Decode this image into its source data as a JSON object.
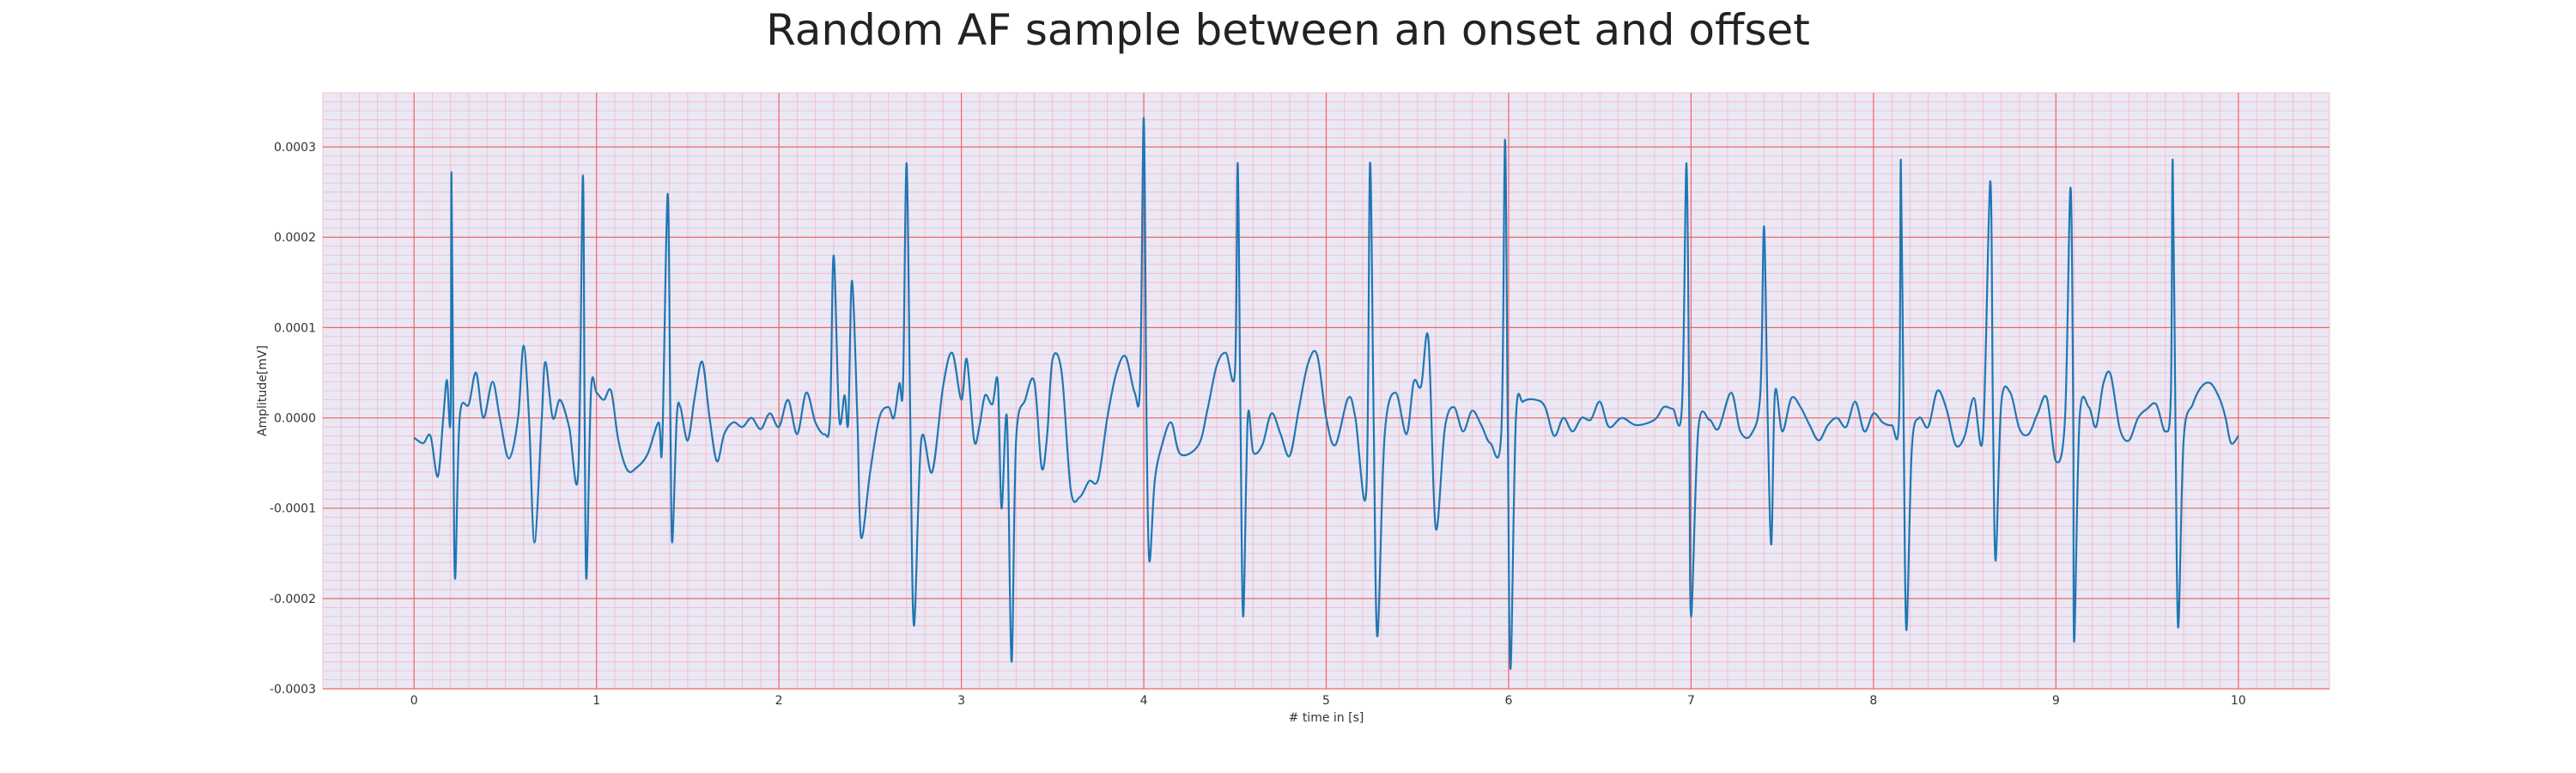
{
  "chart_data": {
    "type": "line",
    "title": "Random AF sample between an onset and offset",
    "xlabel": "# time in [s]",
    "ylabel": "Amplitude[mV]",
    "xlim": [
      -0.5,
      10.5
    ],
    "ylim": [
      -0.0003,
      0.00036
    ],
    "xticks": [
      0,
      1,
      2,
      3,
      4,
      5,
      6,
      7,
      8,
      9,
      10
    ],
    "xtick_labels": [
      "0",
      "1",
      "2",
      "3",
      "4",
      "5",
      "6",
      "7",
      "8",
      "9",
      "10"
    ],
    "yticks": [
      -0.0003,
      -0.0002,
      -0.0001,
      0.0,
      0.0001,
      0.0002,
      0.0003
    ],
    "ytick_labels": [
      "-0.0003",
      "-0.0002",
      "-0.0001",
      "0.0000",
      "0.0001",
      "0.0002",
      "0.0003"
    ],
    "grid": true,
    "minor_grid": true,
    "colors": {
      "background": "#eae8f4",
      "major_grid": "#f06464",
      "minor_grid": "#f4b6c8",
      "line": "#1f77b4"
    },
    "series": [
      {
        "points": [
          [
            0.0,
            -2.2e-05
          ],
          [
            0.05,
            -2.8e-05
          ],
          [
            0.09,
            -2e-05
          ],
          [
            0.13,
            -6.5e-05
          ],
          [
            0.16,
            0.0
          ],
          [
            0.18,
            4.2e-05
          ],
          [
            0.2,
            0.0
          ],
          [
            0.205,
            0.000272
          ],
          [
            0.215,
            0.0
          ],
          [
            0.225,
            -0.000178
          ],
          [
            0.25,
            0.0
          ],
          [
            0.3,
            1.5e-05
          ],
          [
            0.34,
            5e-05
          ],
          [
            0.38,
            0.0
          ],
          [
            0.43,
            4e-05
          ],
          [
            0.47,
            0.0
          ],
          [
            0.52,
            -4.5e-05
          ],
          [
            0.57,
            0.0
          ],
          [
            0.6,
            8e-05
          ],
          [
            0.63,
            0.0
          ],
          [
            0.66,
            -0.000138
          ],
          [
            0.7,
            0.0
          ],
          [
            0.72,
            6.2e-05
          ],
          [
            0.76,
            0.0
          ],
          [
            0.8,
            2e-05
          ],
          [
            0.85,
            -1e-05
          ],
          [
            0.9,
            -6e-05
          ],
          [
            0.925,
            0.000268
          ],
          [
            0.935,
            0.0
          ],
          [
            0.945,
            -0.000178
          ],
          [
            0.97,
            3e-05
          ],
          [
            1.0,
            2.8e-05
          ],
          [
            1.04,
            2e-05
          ],
          [
            1.08,
            3e-05
          ],
          [
            1.12,
            -2.5e-05
          ],
          [
            1.17,
            -5.8e-05
          ],
          [
            1.22,
            -5.5e-05
          ],
          [
            1.28,
            -4e-05
          ],
          [
            1.34,
            -5e-06
          ],
          [
            1.36,
            -3e-05
          ],
          [
            1.39,
            0.000248
          ],
          [
            1.405,
            0.0
          ],
          [
            1.415,
            -0.000138
          ],
          [
            1.44,
            0.0
          ],
          [
            1.46,
            1.2e-05
          ],
          [
            1.5,
            -2.5e-05
          ],
          [
            1.54,
            2.5e-05
          ],
          [
            1.58,
            6.2e-05
          ],
          [
            1.62,
            0.0
          ],
          [
            1.66,
            -4.8e-05
          ],
          [
            1.7,
            -1.8e-05
          ],
          [
            1.75,
            -5e-06
          ],
          [
            1.8,
            -1e-05
          ],
          [
            1.85,
            0.0
          ],
          [
            1.9,
            -1.25e-05
          ],
          [
            1.95,
            5e-06
          ],
          [
            2.0,
            -1e-05
          ],
          [
            2.05,
            2e-05
          ],
          [
            2.1,
            -1.8e-05
          ],
          [
            2.15,
            2.8e-05
          ],
          [
            2.2,
            -5e-06
          ],
          [
            2.25,
            -1.8e-05
          ],
          [
            2.28,
            0.0
          ],
          [
            2.3,
            0.00018
          ],
          [
            2.33,
            0.0
          ],
          [
            2.36,
            2.5e-05
          ],
          [
            2.38,
            -5e-06
          ],
          [
            2.4,
            0.000152
          ],
          [
            2.43,
            0.0
          ],
          [
            2.45,
            -0.000132
          ],
          [
            2.5,
            -6e-05
          ],
          [
            2.55,
            0.0
          ],
          [
            2.6,
            1.2e-05
          ],
          [
            2.63,
            0.0
          ],
          [
            2.66,
            3.8e-05
          ],
          [
            2.68,
            3.5e-05
          ],
          [
            2.7,
            0.000282
          ],
          [
            2.72,
            0.0
          ],
          [
            2.74,
            -0.00023
          ],
          [
            2.78,
            -2.5e-05
          ],
          [
            2.84,
            -6e-05
          ],
          [
            2.9,
            3.5e-05
          ],
          [
            2.95,
            7.2e-05
          ],
          [
            3.0,
            2e-05
          ],
          [
            3.03,
            6.5e-05
          ],
          [
            3.07,
            -2.5e-05
          ],
          [
            3.1,
            -8e-06
          ],
          [
            3.13,
            2.5e-05
          ],
          [
            3.17,
            1.5e-05
          ],
          [
            3.2,
            4e-05
          ],
          [
            3.22,
            -0.0001
          ],
          [
            3.25,
            0.0
          ],
          [
            3.275,
            -0.00027
          ],
          [
            3.3,
            -2.5e-05
          ],
          [
            3.35,
            2e-05
          ],
          [
            3.4,
            4e-05
          ],
          [
            3.44,
            -5.5e-05
          ],
          [
            3.47,
            -2e-05
          ],
          [
            3.5,
            6.5e-05
          ],
          [
            3.55,
            5e-05
          ],
          [
            3.6,
            -8e-05
          ],
          [
            3.65,
            -8.75e-05
          ],
          [
            3.7,
            -7e-05
          ],
          [
            3.75,
            -6.8e-05
          ],
          [
            3.8,
            0.0
          ],
          [
            3.85,
            5e-05
          ],
          [
            3.9,
            6.8e-05
          ],
          [
            3.95,
            2.8e-05
          ],
          [
            3.98,
            4e-05
          ],
          [
            4.0,
            0.000332
          ],
          [
            4.015,
            0.0
          ],
          [
            4.03,
            -0.000158
          ],
          [
            4.06,
            -7e-05
          ],
          [
            4.1,
            -3e-05
          ],
          [
            4.15,
            -5e-06
          ],
          [
            4.2,
            -4e-05
          ],
          [
            4.3,
            -3e-05
          ],
          [
            4.35,
            1e-05
          ],
          [
            4.4,
            5.8e-05
          ],
          [
            4.45,
            7.2e-05
          ],
          [
            4.5,
            5.2e-05
          ],
          [
            4.515,
            0.000282
          ],
          [
            4.53,
            0.0
          ],
          [
            4.545,
            -0.00022
          ],
          [
            4.57,
            0.0
          ],
          [
            4.6,
            -3.8e-05
          ],
          [
            4.65,
            -3e-05
          ],
          [
            4.7,
            5e-06
          ],
          [
            4.75,
            -1.8e-05
          ],
          [
            4.8,
            -4.2e-05
          ],
          [
            4.85,
            1e-05
          ],
          [
            4.9,
            6e-05
          ],
          [
            4.95,
            7e-05
          ],
          [
            5.0,
            0.0
          ],
          [
            5.05,
            -3e-05
          ],
          [
            5.12,
            2.2e-05
          ],
          [
            5.16,
            0.0
          ],
          [
            5.22,
            -8e-05
          ],
          [
            5.24,
            0.000282
          ],
          [
            5.26,
            0.0
          ],
          [
            5.28,
            -0.000242
          ],
          [
            5.32,
            -2e-05
          ],
          [
            5.38,
            2.8e-05
          ],
          [
            5.44,
            -1.8e-05
          ],
          [
            5.48,
            4e-05
          ],
          [
            5.52,
            3.5e-05
          ],
          [
            5.56,
            8.8e-05
          ],
          [
            5.6,
            -0.000122
          ],
          [
            5.65,
            -1.2e-05
          ],
          [
            5.7,
            1.2e-05
          ],
          [
            5.75,
            -1.5e-05
          ],
          [
            5.8,
            8e-06
          ],
          [
            5.85,
            -8e-06
          ],
          [
            5.9,
            -2.8e-05
          ],
          [
            5.96,
            -1.5e-05
          ],
          [
            5.98,
            0.000308
          ],
          [
            5.995,
            0.0
          ],
          [
            6.01,
            -0.000278
          ],
          [
            6.04,
            0.0
          ],
          [
            6.08,
            1.8e-05
          ],
          [
            6.15,
            2e-05
          ],
          [
            6.2,
            1.2e-05
          ],
          [
            6.25,
            -2e-05
          ],
          [
            6.3,
            0.0
          ],
          [
            6.35,
            -1.5e-05
          ],
          [
            6.4,
            0.0
          ],
          [
            6.45,
            -2e-06
          ],
          [
            6.5,
            1.8e-05
          ],
          [
            6.55,
            -1e-05
          ],
          [
            6.62,
            0.0
          ],
          [
            6.7,
            -8e-06
          ],
          [
            6.8,
            -2e-06
          ],
          [
            6.85,
            1.2e-05
          ],
          [
            6.9,
            1e-05
          ],
          [
            6.95,
            1.2e-05
          ],
          [
            6.975,
            0.000282
          ],
          [
            6.99,
            0.0
          ],
          [
            7.0,
            -0.00022
          ],
          [
            7.04,
            -1.2e-05
          ],
          [
            7.1,
            -2e-06
          ],
          [
            7.15,
            -1.2e-05
          ],
          [
            7.22,
            2.8e-05
          ],
          [
            7.27,
            -1.5e-05
          ],
          [
            7.33,
            -1.8e-05
          ],
          [
            7.38,
            2.8e-05
          ],
          [
            7.4,
            0.000212
          ],
          [
            7.42,
            0.0
          ],
          [
            7.44,
            -0.00014
          ],
          [
            7.46,
            2.8e-05
          ],
          [
            7.5,
            -1.5e-05
          ],
          [
            7.55,
            2.2e-05
          ],
          [
            7.6,
            1.2e-05
          ],
          [
            7.65,
            -8e-06
          ],
          [
            7.7,
            -2.5e-05
          ],
          [
            7.75,
            -8e-06
          ],
          [
            7.8,
            0.0
          ],
          [
            7.85,
            -1e-05
          ],
          [
            7.9,
            1.8e-05
          ],
          [
            7.95,
            -1.5e-05
          ],
          [
            8.0,
            5e-06
          ],
          [
            8.05,
            -5e-06
          ],
          [
            8.1,
            -8e-06
          ],
          [
            8.14,
            0.0
          ],
          [
            8.15,
            0.000286
          ],
          [
            8.165,
            0.0
          ],
          [
            8.18,
            -0.000235
          ],
          [
            8.21,
            -3.5e-05
          ],
          [
            8.25,
            0.0
          ],
          [
            8.3,
            -1e-05
          ],
          [
            8.35,
            3e-05
          ],
          [
            8.4,
            1e-05
          ],
          [
            8.45,
            -3e-05
          ],
          [
            8.5,
            -2e-05
          ],
          [
            8.55,
            2.2e-05
          ],
          [
            8.6,
            -2e-05
          ],
          [
            8.64,
            0.000262
          ],
          [
            8.655,
            0.0
          ],
          [
            8.67,
            -0.000158
          ],
          [
            8.7,
            1.5e-05
          ],
          [
            8.75,
            2.8e-05
          ],
          [
            8.8,
            -1.2e-05
          ],
          [
            8.85,
            -1.8e-05
          ],
          [
            8.9,
            5e-06
          ],
          [
            8.95,
            2.2e-05
          ],
          [
            9.0,
            -4.8e-05
          ],
          [
            9.05,
            0.0
          ],
          [
            9.08,
            0.000255
          ],
          [
            9.095,
            0.0
          ],
          [
            9.1,
            -0.000248
          ],
          [
            9.13,
            0.0
          ],
          [
            9.18,
            1.2e-05
          ],
          [
            9.22,
            -1e-05
          ],
          [
            9.26,
            3.8e-05
          ],
          [
            9.3,
            4.8e-05
          ],
          [
            9.35,
            -1.2e-05
          ],
          [
            9.4,
            -2.5e-05
          ],
          [
            9.45,
            0.0
          ],
          [
            9.5,
            1e-05
          ],
          [
            9.55,
            1.5e-05
          ],
          [
            9.6,
            -1.5e-05
          ],
          [
            9.63,
            2.5e-05
          ],
          [
            9.64,
            0.000286
          ],
          [
            9.655,
            0.0
          ],
          [
            9.67,
            -0.000232
          ],
          [
            9.7,
            -2.5e-05
          ],
          [
            9.75,
            1.5e-05
          ],
          [
            9.8,
            3.5e-05
          ],
          [
            9.85,
            3.8e-05
          ],
          [
            9.9,
            2e-05
          ],
          [
            9.93,
            0.0
          ],
          [
            9.96,
            -2.8e-05
          ],
          [
            10.0,
            -2e-05
          ]
        ]
      }
    ]
  }
}
